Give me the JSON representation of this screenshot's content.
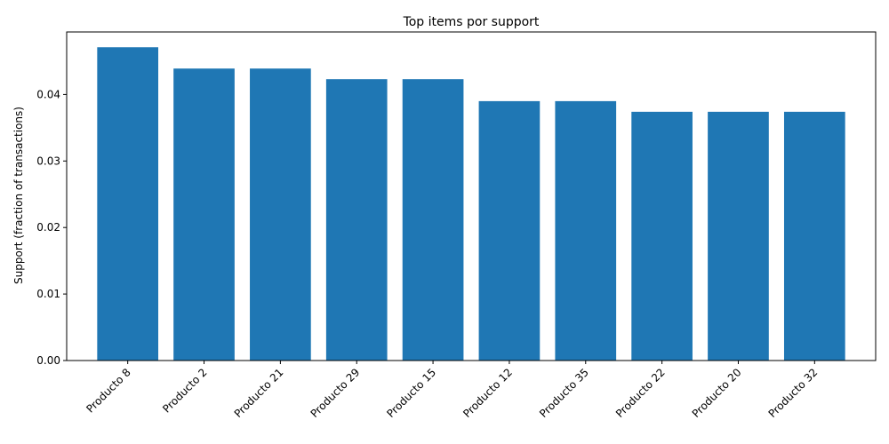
{
  "chart_data": {
    "type": "bar",
    "title": "Top items por support",
    "xlabel": "",
    "ylabel": "Support (fraction of transactions)",
    "categories": [
      "Producto 8",
      "Producto 2",
      "Producto 21",
      "Producto 29",
      "Producto 15",
      "Producto 12",
      "Producto 35",
      "Producto 22",
      "Producto 20",
      "Producto 32"
    ],
    "values": [
      0.0471,
      0.0439,
      0.0439,
      0.0423,
      0.0423,
      0.039,
      0.039,
      0.0374,
      0.0374,
      0.0374
    ],
    "ylim": [
      0,
      0.0494
    ],
    "yticks": [
      "0.00",
      "0.01",
      "0.02",
      "0.03",
      "0.04"
    ],
    "bar_color": "#1f77b4",
    "grid": false,
    "legend": "none"
  }
}
